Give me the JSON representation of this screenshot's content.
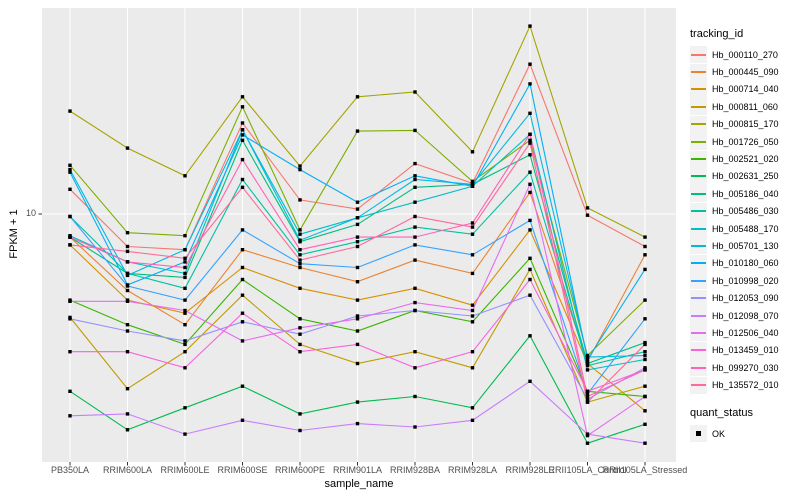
{
  "chart_data": {
    "type": "line",
    "title": "",
    "xlabel": "sample_name",
    "ylabel": "FPKM + 1",
    "legend_title": "tracking_id",
    "marker_legend": {
      "title": "quant_status",
      "label": "OK"
    },
    "y_scale": "log10",
    "y_ticks": [
      10
    ],
    "ylim": [
      1.4,
      53
    ],
    "grid": "on",
    "legend_position": "right",
    "panel_color": "#EBEBEB",
    "grid_color": "#FFFFFF",
    "axis_text_color": "#4D4D4D",
    "tick_color": "#333333",
    "point_color": "#000000",
    "categories": [
      "PB350LA",
      "RRIM600LA",
      "RRIM600LE",
      "RRIM600SE",
      "RRIM600PE",
      "RRIM901LA",
      "RRIM928BA",
      "RRIM928LA",
      "RRIM928LE",
      "RRII105LA_Control",
      "RRII105LA_Stressed"
    ],
    "series": [
      {
        "name": "Hb_000110_270",
        "color": "#F8766D",
        "values": [
          12.2,
          7.7,
          7.5,
          20.8,
          11.2,
          10.4,
          15.0,
          12.8,
          33.4,
          9.9,
          7.7
        ]
      },
      {
        "name": "Hb_000445_090",
        "color": "#EA8331",
        "values": [
          8.3,
          5.4,
          4.1,
          7.5,
          6.5,
          5.8,
          6.9,
          6.2,
          11.9,
          3.05,
          7.2
        ]
      },
      {
        "name": "Hb_000714_040",
        "color": "#D89000",
        "values": [
          7.8,
          5.0,
          4.5,
          6.5,
          5.5,
          5.0,
          5.5,
          4.8,
          8.8,
          3.0,
          2.05
        ]
      },
      {
        "name": "Hb_000811_060",
        "color": "#C09B00",
        "values": [
          4.35,
          2.45,
          3.3,
          5.2,
          3.5,
          3.0,
          3.3,
          2.9,
          6.4,
          2.2,
          2.5
        ]
      },
      {
        "name": "Hb_000815_170",
        "color": "#A3A500",
        "values": [
          22.9,
          17.0,
          13.6,
          25.7,
          14.7,
          25.7,
          26.7,
          16.5,
          45.4,
          10.5,
          8.3
        ]
      },
      {
        "name": "Hb_001726_050",
        "color": "#7CAE00",
        "values": [
          14.8,
          8.6,
          8.4,
          23.7,
          8.8,
          19.5,
          19.6,
          13.0,
          18.1,
          3.2,
          5.0
        ]
      },
      {
        "name": "Hb_002521_020",
        "color": "#39B600",
        "values": [
          5.0,
          4.1,
          3.5,
          5.9,
          4.3,
          3.9,
          4.6,
          4.2,
          7.0,
          2.4,
          2.3
        ]
      },
      {
        "name": "Hb_002631_250",
        "color": "#00BB4E",
        "values": [
          2.4,
          1.76,
          2.1,
          2.5,
          2.0,
          2.2,
          2.3,
          2.1,
          3.75,
          1.58,
          1.84
        ]
      },
      {
        "name": "Hb_005186_040",
        "color": "#00BF7D",
        "values": [
          8.3,
          6.2,
          6.0,
          18.1,
          8.0,
          9.2,
          12.4,
          12.7,
          16.1,
          3.0,
          3.55
        ]
      },
      {
        "name": "Hb_005486_030",
        "color": "#00C1A3",
        "values": [
          9.8,
          6.2,
          5.5,
          13.2,
          7.2,
          8.0,
          9.0,
          8.5,
          14.0,
          2.95,
          3.3
        ]
      },
      {
        "name": "Hb_005488_170",
        "color": "#00BFC4",
        "values": [
          8.4,
          6.8,
          6.2,
          19.7,
          8.5,
          9.7,
          11.0,
          12.5,
          19.0,
          2.85,
          3.1
        ]
      },
      {
        "name": "Hb_005701_130",
        "color": "#00BAE0",
        "values": [
          14.3,
          6.1,
          7.5,
          19.7,
          8.1,
          9.7,
          13.2,
          12.7,
          22.5,
          3.16,
          3.2
        ]
      },
      {
        "name": "Hb_010180_060",
        "color": "#00B0F6",
        "values": [
          14.0,
          5.65,
          6.8,
          18.9,
          14.3,
          11.0,
          13.6,
          12.5,
          28.5,
          3.1,
          6.4
        ]
      },
      {
        "name": "Hb_010998_020",
        "color": "#35A2FF",
        "values": [
          9.8,
          5.6,
          5.0,
          8.8,
          6.7,
          6.5,
          7.8,
          7.2,
          9.5,
          2.35,
          4.3
        ]
      },
      {
        "name": "Hb_012053_090",
        "color": "#9590FF",
        "values": [
          4.3,
          3.9,
          3.6,
          4.2,
          3.8,
          4.4,
          4.6,
          4.4,
          5.2,
          2.25,
          2.9
        ]
      },
      {
        "name": "Hb_012098_070",
        "color": "#C77CFF",
        "values": [
          1.97,
          2.0,
          1.7,
          1.9,
          1.75,
          1.85,
          1.8,
          1.9,
          2.6,
          1.7,
          1.58
        ]
      },
      {
        "name": "Hb_012506_040",
        "color": "#E76BF3",
        "values": [
          4.95,
          4.95,
          4.6,
          3.6,
          4.0,
          4.3,
          4.9,
          4.6,
          12.7,
          1.68,
          2.3
        ]
      },
      {
        "name": "Hb_013459_010",
        "color": "#FA62DB",
        "values": [
          3.3,
          3.3,
          2.9,
          4.5,
          3.3,
          3.5,
          2.9,
          3.3,
          5.9,
          2.4,
          2.85
        ]
      },
      {
        "name": "Hb_099270_030",
        "color": "#FF62BC",
        "values": [
          8.3,
          6.8,
          6.5,
          15.5,
          7.5,
          8.3,
          8.3,
          9.3,
          19.0,
          2.3,
          2.85
        ]
      },
      {
        "name": "Hb_135572_010",
        "color": "#FF6A98",
        "values": [
          7.8,
          7.4,
          7.0,
          12.4,
          6.9,
          7.7,
          9.8,
          9.0,
          17.7,
          2.2,
          3.5
        ]
      }
    ]
  }
}
